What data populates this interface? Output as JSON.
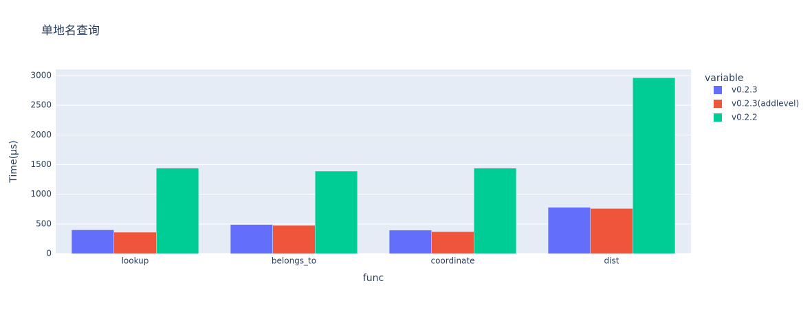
{
  "chart_data": {
    "type": "bar",
    "title": "单地名查询",
    "x_label": "func",
    "y_label": "Time(μs)",
    "legend_title": "variable",
    "categories": [
      "lookup",
      "belongs_to",
      "coordinate",
      "dist"
    ],
    "series": [
      {
        "name": "v0.2.3",
        "color": "#636efa",
        "values": [
          400,
          490,
          395,
          780
        ]
      },
      {
        "name": "v0.2.3(addlevel)",
        "color": "#ef553b",
        "values": [
          360,
          475,
          370,
          760
        ]
      },
      {
        "name": "v0.2.2",
        "color": "#00cc96",
        "values": [
          1440,
          1390,
          1440,
          2965
        ]
      }
    ],
    "ylim": [
      0,
      3000
    ],
    "yticks": [
      0,
      500,
      1000,
      1500,
      2000,
      2500,
      3000
    ],
    "grid": true
  }
}
